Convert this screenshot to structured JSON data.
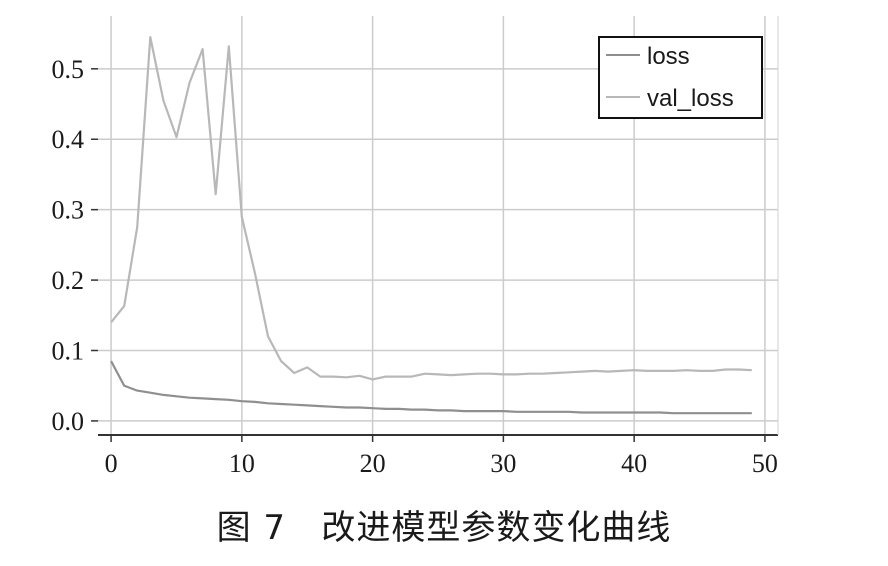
{
  "caption": "图 7   改进模型参数变化曲线",
  "chart_data": {
    "type": "line",
    "xlim": [
      -1,
      51
    ],
    "ylim": [
      -0.02,
      0.575
    ],
    "xticks": [
      0,
      10,
      20,
      30,
      40,
      50
    ],
    "xtick_labels": [
      "0",
      "10",
      "20",
      "30",
      "40",
      "50"
    ],
    "yticks": [
      0.0,
      0.1,
      0.2,
      0.3,
      0.4,
      0.5
    ],
    "ytick_labels": [
      "0.0",
      "0.1",
      "0.2",
      "0.3",
      "0.4",
      "0.5"
    ],
    "grid": true,
    "legend": "top-right",
    "series": [
      {
        "name": "loss",
        "color": "#8f8f8f",
        "x": [
          0,
          1,
          2,
          3,
          4,
          5,
          6,
          7,
          8,
          9,
          10,
          11,
          12,
          13,
          14,
          15,
          16,
          17,
          18,
          19,
          20,
          21,
          22,
          23,
          24,
          25,
          26,
          27,
          28,
          29,
          30,
          31,
          32,
          33,
          34,
          35,
          36,
          37,
          38,
          39,
          40,
          41,
          42,
          43,
          44,
          45,
          46,
          47,
          48,
          49
        ],
        "values": [
          0.085,
          0.05,
          0.043,
          0.04,
          0.037,
          0.035,
          0.033,
          0.032,
          0.031,
          0.03,
          0.028,
          0.027,
          0.025,
          0.024,
          0.023,
          0.022,
          0.021,
          0.02,
          0.019,
          0.019,
          0.018,
          0.017,
          0.017,
          0.016,
          0.016,
          0.015,
          0.015,
          0.014,
          0.014,
          0.014,
          0.014,
          0.013,
          0.013,
          0.013,
          0.013,
          0.013,
          0.012,
          0.012,
          0.012,
          0.012,
          0.012,
          0.012,
          0.012,
          0.011,
          0.011,
          0.011,
          0.011,
          0.011,
          0.011,
          0.011
        ]
      },
      {
        "name": "val_loss",
        "color": "#b8b8b8",
        "x": [
          0,
          1,
          2,
          3,
          4,
          5,
          6,
          7,
          8,
          9,
          10,
          11,
          12,
          13,
          14,
          15,
          16,
          17,
          18,
          19,
          20,
          21,
          22,
          23,
          24,
          25,
          26,
          27,
          28,
          29,
          30,
          31,
          32,
          33,
          34,
          35,
          36,
          37,
          38,
          39,
          40,
          41,
          42,
          43,
          44,
          45,
          46,
          47,
          48,
          49
        ],
        "values": [
          0.14,
          0.163,
          0.275,
          0.545,
          0.455,
          0.403,
          0.48,
          0.528,
          0.322,
          0.532,
          0.29,
          0.21,
          0.12,
          0.085,
          0.068,
          0.076,
          0.063,
          0.063,
          0.062,
          0.064,
          0.059,
          0.063,
          0.063,
          0.063,
          0.067,
          0.066,
          0.065,
          0.066,
          0.067,
          0.067,
          0.066,
          0.066,
          0.067,
          0.067,
          0.068,
          0.069,
          0.07,
          0.071,
          0.07,
          0.071,
          0.072,
          0.071,
          0.071,
          0.071,
          0.072,
          0.071,
          0.071,
          0.073,
          0.073,
          0.072
        ]
      }
    ]
  }
}
